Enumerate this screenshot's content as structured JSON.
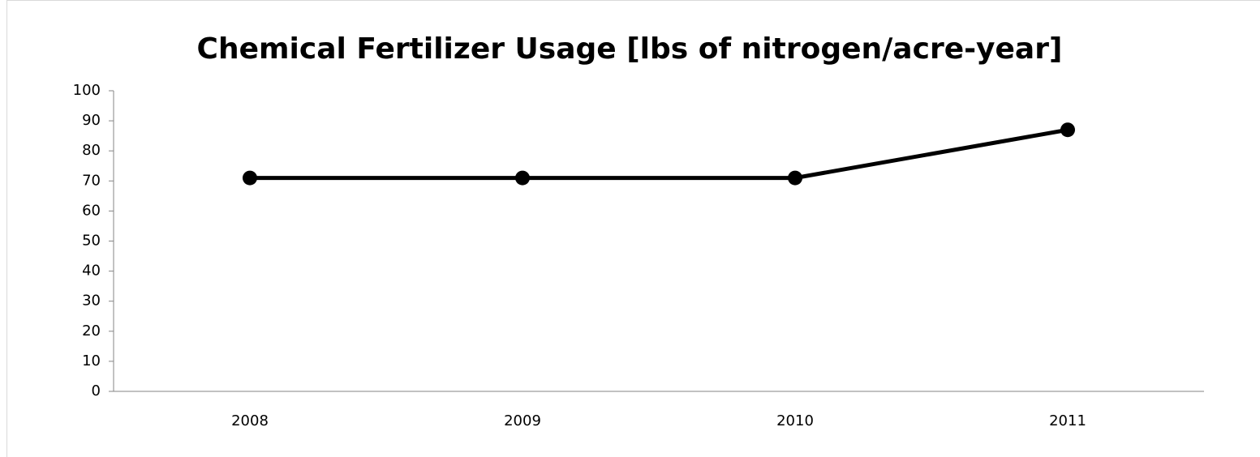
{
  "chart_data": {
    "type": "line",
    "title": "Chemical Fertilizer Usage [lbs of nitrogen/acre-year]",
    "categories": [
      "2008",
      "2009",
      "2010",
      "2011"
    ],
    "series": [
      {
        "name": "Chemical Fertilizer Usage",
        "color": "#000000",
        "values": [
          71,
          71,
          71,
          87
        ]
      }
    ],
    "ylim": [
      0,
      100
    ],
    "yticks": [
      0,
      10,
      20,
      30,
      40,
      50,
      60,
      70,
      80,
      90,
      100
    ],
    "grid": false
  }
}
